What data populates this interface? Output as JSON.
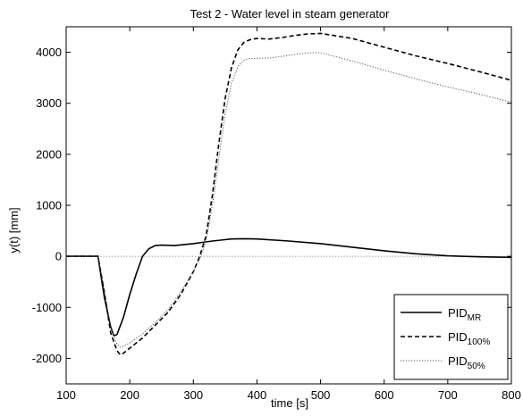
{
  "chart_data": {
    "type": "line",
    "title": "Test 2 - Water level in steam generator",
    "xlabel": "time [s]",
    "ylabel": "y(t) [mm]",
    "xlim": [
      100,
      800
    ],
    "ylim": [
      -2500,
      4500
    ],
    "xticks": [
      100,
      200,
      300,
      400,
      500,
      600,
      700,
      800
    ],
    "yticks": [
      -2000,
      -1000,
      0,
      1000,
      2000,
      3000,
      4000
    ],
    "xtick_labels": [
      "100",
      "200",
      "300",
      "400",
      "500",
      "600",
      "700",
      "800"
    ],
    "ytick_labels": [
      "-2000",
      "-1000",
      "0",
      "1000",
      "2000",
      "3000",
      "4000"
    ],
    "grid": false,
    "legend_position": "bottom-right",
    "reference_line": {
      "y": 0,
      "style": "dotted"
    },
    "series": [
      {
        "name": "PID",
        "subscript": "MR",
        "line_style": "solid",
        "color": "#000000",
        "x": [
          100,
          150,
          160,
          170,
          175,
          180,
          190,
          200,
          210,
          220,
          230,
          240,
          250,
          270,
          300,
          330,
          360,
          380,
          400,
          450,
          500,
          550,
          600,
          650,
          700,
          750,
          800
        ],
        "y": [
          0,
          0,
          -800,
          -1380,
          -1560,
          -1530,
          -1200,
          -750,
          -350,
          0,
          150,
          210,
          220,
          210,
          250,
          300,
          340,
          345,
          340,
          300,
          250,
          180,
          110,
          50,
          10,
          -10,
          -20
        ]
      },
      {
        "name": "PID",
        "subscript": "100%",
        "line_style": "dashed",
        "color": "#000000",
        "x": [
          100,
          150,
          160,
          170,
          180,
          185,
          190,
          200,
          220,
          240,
          260,
          280,
          300,
          310,
          320,
          330,
          340,
          350,
          360,
          370,
          380,
          390,
          400,
          420,
          440,
          460,
          480,
          500,
          550,
          600,
          650,
          700,
          750,
          800
        ],
        "y": [
          0,
          0,
          -700,
          -1500,
          -1850,
          -1930,
          -1900,
          -1800,
          -1600,
          -1350,
          -1100,
          -750,
          -300,
          0,
          400,
          1200,
          2200,
          3100,
          3700,
          4050,
          4200,
          4250,
          4270,
          4260,
          4290,
          4330,
          4360,
          4370,
          4270,
          4100,
          3930,
          3780,
          3620,
          3450
        ]
      },
      {
        "name": "PID",
        "subscript": "50%",
        "line_style": "dotted",
        "color": "#000000",
        "x": [
          100,
          150,
          160,
          170,
          180,
          185,
          190,
          200,
          220,
          240,
          260,
          280,
          300,
          310,
          320,
          330,
          340,
          350,
          360,
          370,
          380,
          390,
          400,
          420,
          440,
          460,
          480,
          500,
          550,
          600,
          650,
          700,
          750,
          800
        ],
        "y": [
          0,
          0,
          -650,
          -1400,
          -1720,
          -1780,
          -1760,
          -1700,
          -1520,
          -1300,
          -1050,
          -700,
          -300,
          -50,
          300,
          1000,
          1900,
          2800,
          3400,
          3720,
          3850,
          3880,
          3880,
          3890,
          3920,
          3960,
          3990,
          3990,
          3830,
          3650,
          3480,
          3320,
          3180,
          3020
        ]
      }
    ]
  }
}
